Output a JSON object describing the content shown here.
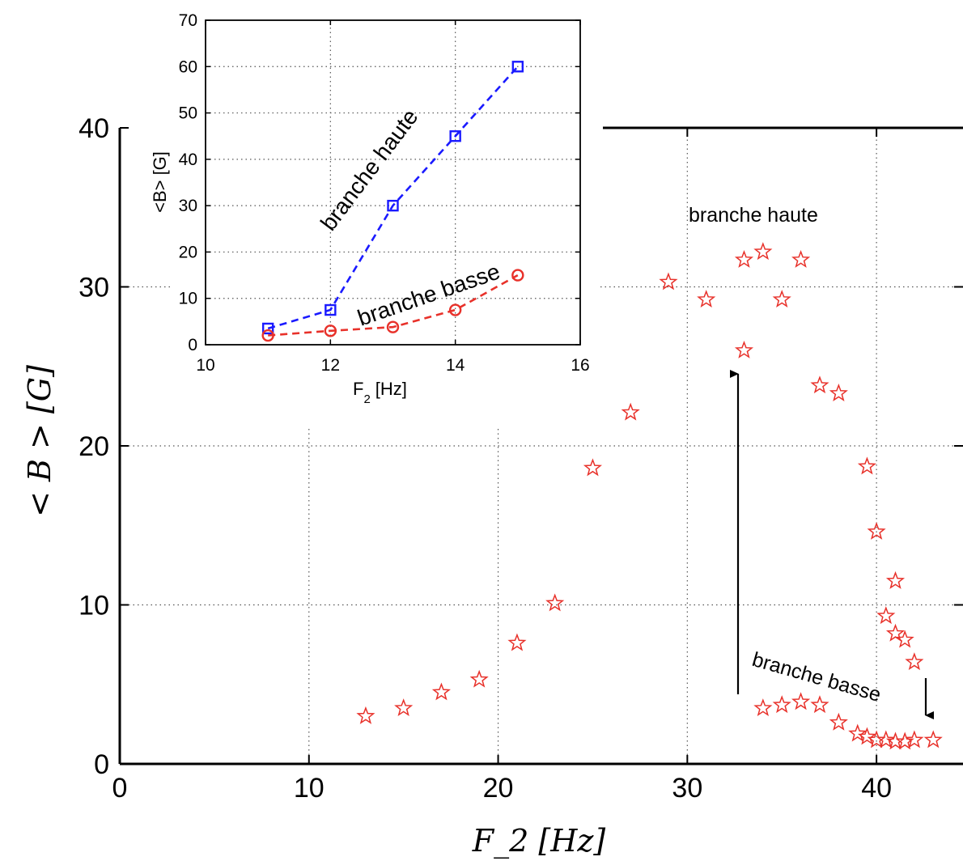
{
  "chart_data": [
    {
      "type": "scatter",
      "xlabel": "F_2 [Hz]",
      "ylabel": "< B > [G]",
      "xlim": [
        0,
        45
      ],
      "ylim": [
        0,
        40
      ],
      "xticks": [
        "0",
        "10",
        "20",
        "30",
        "40"
      ],
      "yticks": [
        "0",
        "10",
        "20",
        "30",
        "40"
      ],
      "grid": true,
      "marker": "star",
      "color": "#e8312a",
      "series": [
        {
          "x": [
            13,
            15,
            17,
            19,
            21,
            23,
            25,
            27,
            29,
            31,
            33,
            33,
            34,
            35,
            36,
            37,
            38,
            39.5,
            40,
            41,
            40.5,
            41,
            41.5,
            42,
            34,
            35,
            36,
            37,
            38,
            39,
            39.5,
            40,
            40.5,
            41,
            41.5,
            42,
            43
          ],
          "y": [
            3.0,
            3.5,
            4.5,
            5.3,
            7.6,
            10.1,
            18.6,
            22.1,
            30.3,
            29.2,
            31.7,
            26.0,
            32.2,
            29.2,
            31.7,
            23.8,
            23.3,
            18.7,
            14.6,
            11.5,
            9.3,
            8.2,
            7.8,
            6.4,
            3.5,
            3.7,
            3.9,
            3.7,
            2.6,
            1.9,
            1.7,
            1.5,
            1.5,
            1.4,
            1.4,
            1.5,
            1.5
          ]
        }
      ],
      "annotations": [
        {
          "text": "branche haute"
        },
        {
          "text": "branche basse"
        }
      ]
    },
    {
      "type": "line",
      "xlabel": "F",
      "xlabel_sub": "2",
      "xlabel_unit": "[Hz]",
      "ylabel": "<B> [G]",
      "xlim": [
        10,
        16
      ],
      "ylim": [
        0,
        70
      ],
      "xticks": [
        "10",
        "12",
        "14",
        "16"
      ],
      "yticks": [
        "0",
        "10",
        "20",
        "30",
        "40",
        "50",
        "60",
        "70"
      ],
      "grid": true,
      "series": [
        {
          "name": "branche haute",
          "color": "#1a1aff",
          "marker": "square",
          "x": [
            11,
            12,
            13,
            14,
            15
          ],
          "y": [
            3.5,
            7.5,
            30,
            45,
            60
          ]
        },
        {
          "name": "branche basse",
          "color": "#e8312a",
          "marker": "circle",
          "x": [
            11,
            12,
            13,
            14,
            15
          ],
          "y": [
            2,
            3,
            3.8,
            7.5,
            15
          ]
        }
      ]
    }
  ]
}
